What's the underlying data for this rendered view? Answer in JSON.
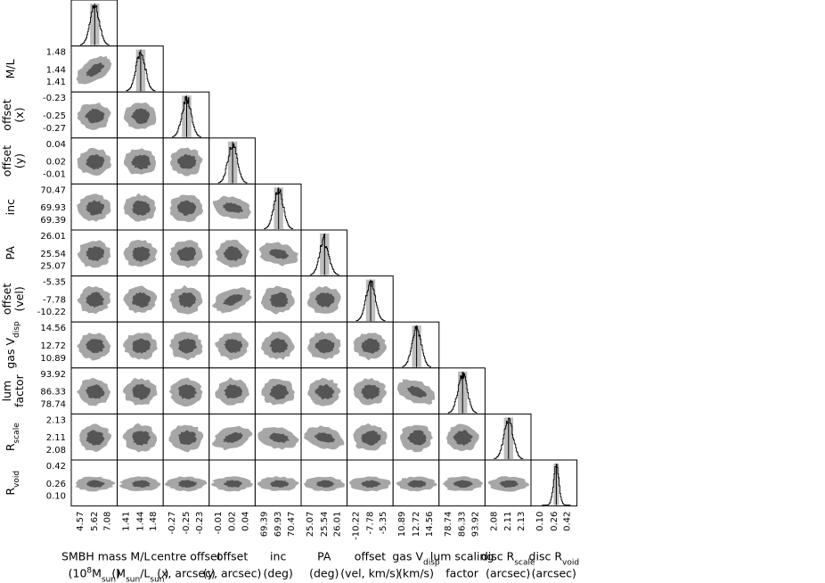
{
  "chart_data": {
    "type": "corner",
    "parameters": [
      {
        "key": "mbh",
        "row_label": [
          {
            "t": ""
          }
        ],
        "col_label": [
          [
            {
              "t": "SMBH mass"
            }
          ],
          [
            {
              "t": "(10"
            },
            {
              "t": "8",
              "s": "sup"
            },
            {
              "t": "M"
            },
            {
              "t": "sun",
              "s": "sub"
            },
            {
              "t": ")"
            }
          ]
        ],
        "ticks": [
          "4.57",
          "5.62",
          "7.08"
        ]
      },
      {
        "key": "ml",
        "row_label": [
          [
            {
              "t": "M/L"
            }
          ]
        ],
        "col_label": [
          [
            {
              "t": "M/L"
            }
          ],
          [
            {
              "t": "(M"
            },
            {
              "t": "sun",
              "s": "sub"
            },
            {
              "t": "/L"
            },
            {
              "t": "sun",
              "s": "sub"
            },
            {
              "t": ")"
            }
          ]
        ],
        "ticks": [
          "1.41",
          "1.44",
          "1.48"
        ]
      },
      {
        "key": "xoff",
        "row_label": [
          [
            {
              "t": "offset"
            }
          ],
          [
            {
              "t": "(x)"
            }
          ]
        ],
        "col_label": [
          [
            {
              "t": "centre offset"
            }
          ],
          [
            {
              "t": "(x, arcsec)"
            }
          ]
        ],
        "ticks": [
          "-0.27",
          "-0.25",
          "-0.23"
        ]
      },
      {
        "key": "yoff",
        "row_label": [
          [
            {
              "t": "offset"
            }
          ],
          [
            {
              "t": "(y)"
            }
          ]
        ],
        "col_label": [
          [
            {
              "t": "offset"
            }
          ],
          [
            {
              "t": "(y, arcsec)"
            }
          ]
        ],
        "ticks": [
          "-0.01",
          "0.02",
          "0.04"
        ]
      },
      {
        "key": "inc",
        "row_label": [
          [
            {
              "t": "inc"
            }
          ]
        ],
        "col_label": [
          [
            {
              "t": "inc"
            }
          ],
          [
            {
              "t": "(deg)"
            }
          ]
        ],
        "ticks": [
          "69.39",
          "69.93",
          "70.47"
        ]
      },
      {
        "key": "pa",
        "row_label": [
          [
            {
              "t": "PA"
            }
          ]
        ],
        "col_label": [
          [
            {
              "t": "PA"
            }
          ],
          [
            {
              "t": "(deg)"
            }
          ]
        ],
        "ticks": [
          "25.07",
          "25.54",
          "26.01"
        ]
      },
      {
        "key": "voff",
        "row_label": [
          [
            {
              "t": "offset"
            }
          ],
          [
            {
              "t": "(vel)"
            }
          ]
        ],
        "col_label": [
          [
            {
              "t": "offset"
            }
          ],
          [
            {
              "t": "(vel, km/s)"
            }
          ]
        ],
        "ticks": [
          "-10.22",
          "-7.78",
          "-5.35"
        ]
      },
      {
        "key": "vdisp",
        "row_label": [
          [
            {
              "t": "gas V"
            },
            {
              "t": "disp",
              "s": "sub"
            }
          ]
        ],
        "col_label": [
          [
            {
              "t": "gas V"
            },
            {
              "t": "disp",
              "s": "sub"
            }
          ],
          [
            {
              "t": "(km/s)"
            }
          ]
        ],
        "ticks": [
          "10.89",
          "12.72",
          "14.56"
        ]
      },
      {
        "key": "lum",
        "row_label": [
          [
            {
              "t": "lum"
            }
          ],
          [
            {
              "t": "factor"
            }
          ]
        ],
        "col_label": [
          [
            {
              "t": "lum scaling"
            }
          ],
          [
            {
              "t": "factor"
            }
          ]
        ],
        "ticks": [
          "78.74",
          "86.33",
          "93.92"
        ]
      },
      {
        "key": "rscale",
        "row_label": [
          [
            {
              "t": "R"
            },
            {
              "t": "scale",
              "s": "sub"
            }
          ]
        ],
        "col_label": [
          [
            {
              "t": "disc R"
            },
            {
              "t": "scale",
              "s": "sub"
            }
          ],
          [
            {
              "t": "(arcsec)"
            }
          ]
        ],
        "ticks": [
          "2.08",
          "2.11",
          "2.13"
        ]
      },
      {
        "key": "rvoid",
        "row_label": [
          [
            {
              "t": "R"
            },
            {
              "t": "void",
              "s": "sub"
            }
          ]
        ],
        "col_label": [
          [
            {
              "t": "disc R"
            },
            {
              "t": "void",
              "s": "sub"
            }
          ],
          [
            {
              "t": "(arcsec)"
            }
          ]
        ],
        "ticks": [
          "0.10",
          "0.26",
          "0.42"
        ]
      }
    ],
    "diagonal": "histogram",
    "off_diagonal": "2d density contours (68% dark, 99% light)",
    "correlations": [
      {
        "row": 1,
        "col": 0,
        "slope": -0.75
      },
      {
        "row": 6,
        "col": 3,
        "slope": -0.45
      },
      {
        "row": 8,
        "col": 7,
        "slope": 0.45
      },
      {
        "row": 4,
        "col": 3,
        "slope": 0.25
      },
      {
        "row": 5,
        "col": 4,
        "slope": 0.25
      },
      {
        "row": 9,
        "col": 3,
        "slope": -0.3
      },
      {
        "row": 9,
        "col": 4,
        "slope": 0.2
      },
      {
        "row": 9,
        "col": 5,
        "slope": 0.25
      }
    ],
    "colors": {
      "inner": "#555555",
      "outer": "#a6a6a6",
      "hist_fill": "#bdbdbd",
      "hist_line": "#000000"
    }
  }
}
